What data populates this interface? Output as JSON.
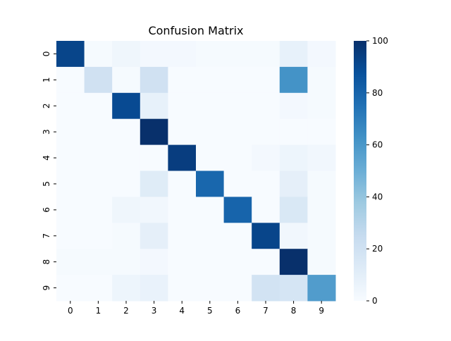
{
  "chart_data": {
    "type": "heatmap",
    "title": "Confusion Matrix",
    "xlabel": "",
    "ylabel": "",
    "x_categories": [
      "0",
      "1",
      "2",
      "3",
      "4",
      "5",
      "6",
      "7",
      "8",
      "9"
    ],
    "y_categories": [
      "0",
      "1",
      "2",
      "3",
      "4",
      "5",
      "6",
      "7",
      "8",
      "9"
    ],
    "values": [
      [
        92,
        1,
        4,
        2,
        2,
        1,
        1,
        1,
        8,
        2
      ],
      [
        0,
        20,
        1,
        20,
        0,
        0,
        0,
        0,
        62,
        1
      ],
      [
        0,
        0,
        90,
        8,
        0,
        0,
        0,
        0,
        2,
        1
      ],
      [
        0,
        0,
        0,
        100,
        0,
        0,
        0,
        0,
        0,
        0
      ],
      [
        0,
        0,
        0,
        0,
        95,
        0,
        0,
        2,
        5,
        3
      ],
      [
        0,
        0,
        0,
        12,
        0,
        79,
        0,
        0,
        9,
        1
      ],
      [
        0,
        0,
        4,
        3,
        0,
        0,
        80,
        0,
        15,
        1
      ],
      [
        0,
        0,
        1,
        9,
        0,
        0,
        0,
        92,
        3,
        1
      ],
      [
        1,
        1,
        1,
        2,
        0,
        0,
        0,
        0,
        100,
        1
      ],
      [
        0,
        0,
        5,
        7,
        0,
        0,
        0,
        19,
        17,
        58
      ]
    ],
    "colorbar": {
      "colormap": "Blues",
      "min": 0,
      "max": 100,
      "ticks": [
        "0",
        "20",
        "40",
        "60",
        "80",
        "100"
      ]
    },
    "grid": false,
    "legend": "colorbar-right"
  }
}
